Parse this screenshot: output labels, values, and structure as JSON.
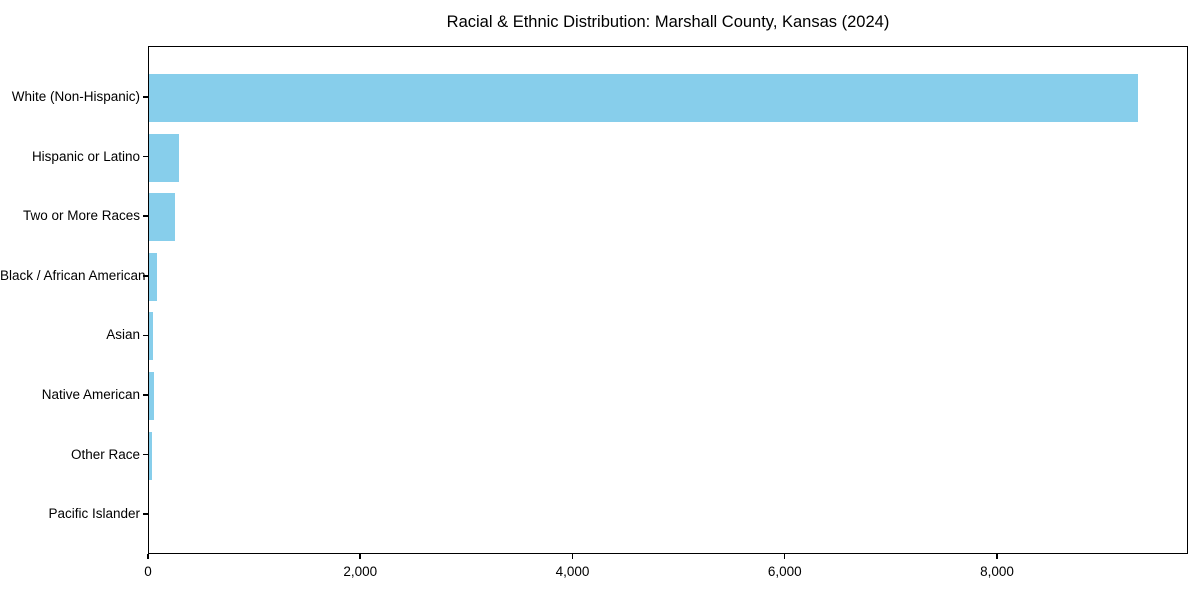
{
  "chart_data": {
    "type": "bar",
    "orientation": "horizontal",
    "title": "Racial & Ethnic Distribution: Marshall County, Kansas (2024)",
    "categories": [
      "White (Non-Hispanic)",
      "Hispanic or Latino",
      "Two or More Races",
      "Black / African American",
      "Asian",
      "Native American",
      "Other Race",
      "Pacific Islander"
    ],
    "values": [
      9320,
      285,
      240,
      75,
      40,
      45,
      25,
      0
    ],
    "xlabel": "",
    "ylabel": "",
    "xlim": [
      0,
      9800
    ],
    "x_ticks": [
      0,
      2000,
      4000,
      6000,
      8000
    ],
    "x_tick_labels": [
      "0",
      "2,000",
      "4,000",
      "6,000",
      "8,000"
    ],
    "bar_color": "#87CEEB",
    "axis_color": "#000000",
    "text_color": "#000000",
    "grid": "off",
    "legend": "none"
  }
}
